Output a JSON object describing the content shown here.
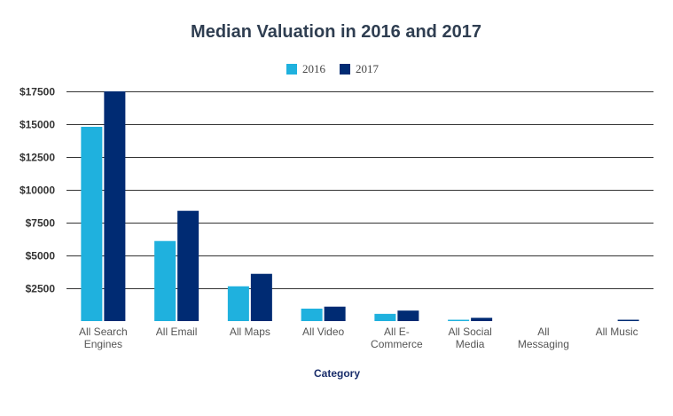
{
  "chart_data": {
    "type": "bar",
    "title": "Median Valuation in 2016 and 2017",
    "xlabel": "Category",
    "ylabel": "",
    "categories": [
      [
        "All Search",
        "Engines"
      ],
      [
        "All Email"
      ],
      [
        "All Maps"
      ],
      [
        "All Video"
      ],
      [
        "All E-",
        "Commerce"
      ],
      [
        "All Social",
        "Media"
      ],
      [
        "All",
        "Messaging"
      ],
      [
        "All Music"
      ]
    ],
    "series": [
      {
        "name": "2016",
        "color": "#1fb1de",
        "values": [
          14800,
          6100,
          2650,
          950,
          550,
          100,
          0,
          0
        ]
      },
      {
        "name": "2017",
        "color": "#002b73",
        "values": [
          17500,
          8400,
          3600,
          1100,
          800,
          250,
          0,
          100
        ]
      }
    ],
    "ylim": [
      0,
      17500
    ],
    "yticks": [
      2500,
      5000,
      7500,
      10000,
      12500,
      15000,
      17500
    ],
    "ytick_labels": [
      "$2500",
      "$5000",
      "$7500",
      "$10000",
      "$12500",
      "$15000",
      "$17500"
    ],
    "legend_position": "top-center",
    "grid": true
  }
}
